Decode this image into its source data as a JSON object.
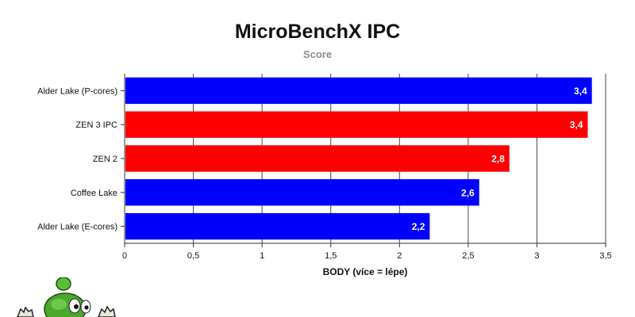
{
  "chart_data": {
    "type": "bar",
    "orientation": "horizontal",
    "title": "MicroBenchX IPC",
    "subtitle": "Score",
    "xlabel": "BODY (více = lépe)",
    "ylabel": "",
    "xlim": [
      0,
      3.5
    ],
    "x_ticks": [
      "0",
      "0,5",
      "1",
      "1,5",
      "2",
      "2,5",
      "3",
      "3,5"
    ],
    "grid": "vertical",
    "legend": "none",
    "categories": [
      "Alder Lake (P-cores)",
      "ZEN 3 IPC",
      "ZEN 2",
      "Coffee Lake",
      "Alder Lake (E-cores)"
    ],
    "values": [
      3.4,
      3.37,
      2.8,
      2.58,
      2.22
    ],
    "value_labels": [
      "3,4",
      "3,4",
      "2,8",
      "2,6",
      "2,2"
    ],
    "colors": [
      "#0000ff",
      "#ff0000",
      "#ff0000",
      "#0000ff",
      "#0000ff"
    ]
  },
  "decoration": {
    "mascot_icon": "green-alien-mascot-icon"
  }
}
